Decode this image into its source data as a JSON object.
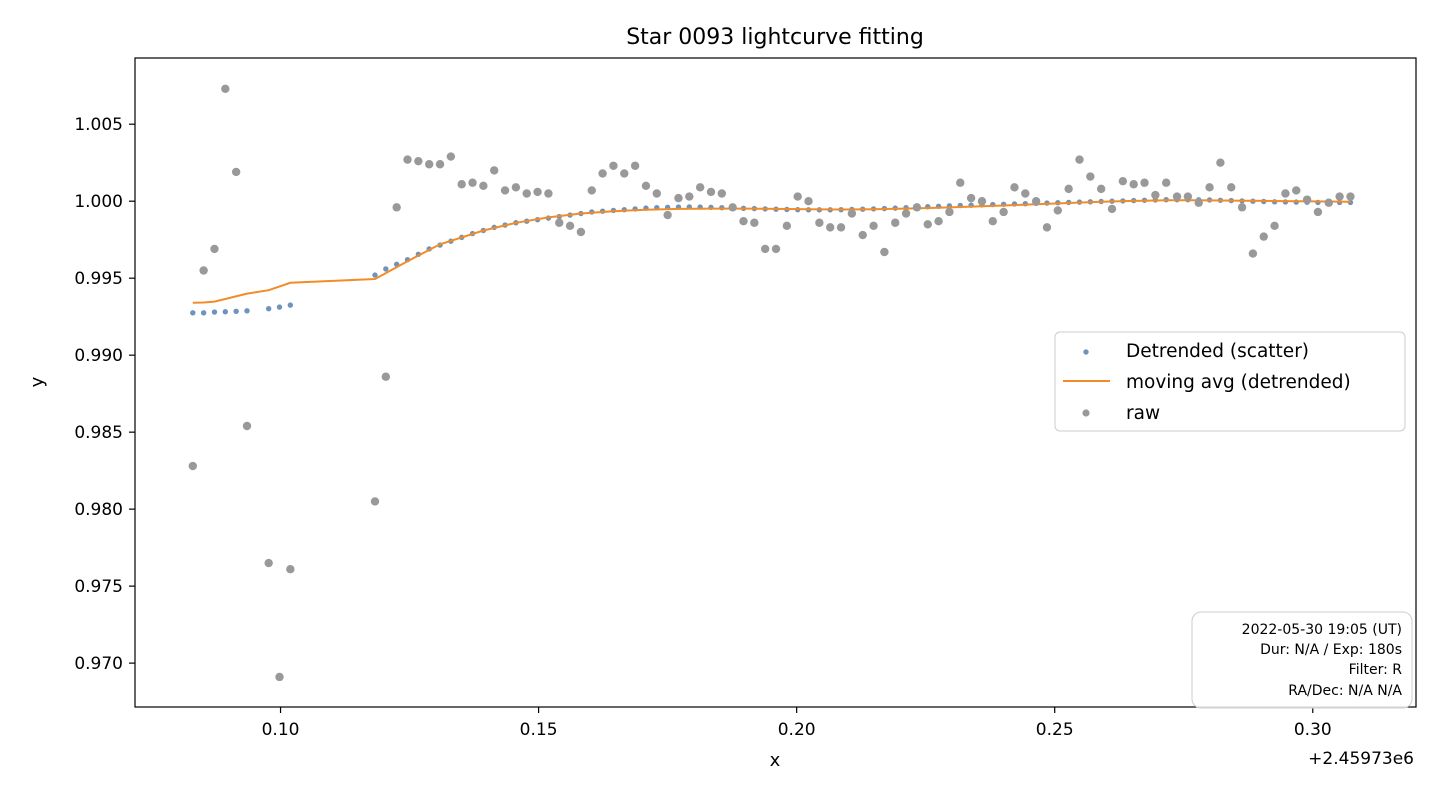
{
  "chart_data": {
    "type": "scatter",
    "title": "Star 0093 lightcurve fitting",
    "xlabel": "x",
    "ylabel": "y",
    "x_offset_label": "+2.45973e6",
    "xlim": [
      0.0718,
      0.32
    ],
    "ylim": [
      0.96715,
      1.0093
    ],
    "xticks": [
      0.1,
      0.15,
      0.2,
      0.25,
      0.3
    ],
    "xtick_labels": [
      "0.10",
      "0.15",
      "0.20",
      "0.25",
      "0.30"
    ],
    "yticks": [
      0.97,
      0.975,
      0.98,
      0.985,
      0.99,
      0.995,
      1.0,
      1.005
    ],
    "ytick_labels": [
      "0.970",
      "0.975",
      "0.980",
      "0.985",
      "0.990",
      "0.995",
      "1.000",
      "1.005"
    ],
    "grid": false,
    "legend_position": "center-right",
    "legend": [
      "Detrended (scatter)",
      "moving avg (detrended)",
      "raw"
    ],
    "info_box": {
      "position": "bottom-right",
      "lines": [
        "2022-05-30 19:05 (UT)",
        "Dur: N/A / Exp: 180s",
        "Filter: R",
        "RA/Dec: N/A N/A"
      ]
    },
    "colors": {
      "detrended": "#6f93bd",
      "moving_avg": "#f28c28",
      "raw": "#999999"
    },
    "series": [
      {
        "name": "Detrended (scatter)",
        "style": "scatter",
        "x": [
          0.083,
          0.0851,
          0.0872,
          0.0893,
          0.0914,
          0.0935,
          0.0977,
          0.0998,
          0.1019,
          0.1183,
          0.1204,
          0.1225,
          0.1246,
          0.1267,
          0.1288,
          0.1309,
          0.133,
          0.1351,
          0.1372,
          0.1393,
          0.1414,
          0.1435,
          0.1456,
          0.1477,
          0.1498,
          0.1519,
          0.154,
          0.1561,
          0.1582,
          0.1603,
          0.1624,
          0.1645,
          0.1666,
          0.1687,
          0.1708,
          0.1729,
          0.175,
          0.1771,
          0.1792,
          0.1813,
          0.1834,
          0.1855,
          0.1876,
          0.1897,
          0.1918,
          0.1939,
          0.196,
          0.1981,
          0.2002,
          0.2023,
          0.2044,
          0.2065,
          0.2086,
          0.2107,
          0.2128,
          0.2149,
          0.217,
          0.2191,
          0.2212,
          0.2233,
          0.2254,
          0.2275,
          0.2296,
          0.2317,
          0.2338,
          0.2359,
          0.238,
          0.2401,
          0.2422,
          0.2443,
          0.2464,
          0.2485,
          0.2506,
          0.2527,
          0.2548,
          0.2569,
          0.259,
          0.2611,
          0.2632,
          0.2653,
          0.2674,
          0.2695,
          0.2716,
          0.2737,
          0.2758,
          0.2779,
          0.28,
          0.2821,
          0.2842,
          0.2863,
          0.2884,
          0.2905,
          0.2926,
          0.2947,
          0.2968,
          0.2989,
          0.301,
          0.3031,
          0.3052,
          0.3073
        ],
        "y": [
          0.99275,
          0.99275,
          0.9928,
          0.99282,
          0.99285,
          0.99288,
          0.99302,
          0.99312,
          0.99325,
          0.9952,
          0.9956,
          0.9959,
          0.9962,
          0.99655,
          0.9969,
          0.99715,
          0.9974,
          0.99765,
          0.9979,
          0.9981,
          0.9983,
          0.99845,
          0.9986,
          0.9987,
          0.9988,
          0.9989,
          0.999,
          0.9991,
          0.9992,
          0.9993,
          0.99935,
          0.9994,
          0.99945,
          0.9995,
          0.99955,
          0.99958,
          0.9996,
          0.99962,
          0.99963,
          0.99962,
          0.9996,
          0.99958,
          0.99956,
          0.99954,
          0.99952,
          0.9995,
          0.99948,
          0.99946,
          0.99945,
          0.99944,
          0.99944,
          0.99944,
          0.99945,
          0.99946,
          0.99948,
          0.9995,
          0.99952,
          0.99955,
          0.99958,
          0.99961,
          0.99964,
          0.99967,
          0.9997,
          0.99972,
          0.99974,
          0.99976,
          0.99978,
          0.9998,
          0.99982,
          0.99984,
          0.99986,
          0.99988,
          0.9999,
          0.99992,
          0.99994,
          0.99996,
          0.99998,
          1.0,
          1.00002,
          1.00004,
          1.00006,
          1.00008,
          1.0001,
          1.0001,
          1.0001,
          1.00009,
          1.00008,
          1.00006,
          1.00004,
          1.00002,
          1.0,
          0.99998,
          0.99996,
          0.99995,
          0.99994,
          0.99993,
          0.99992,
          0.99992,
          0.99992,
          0.99992
        ]
      },
      {
        "name": "moving avg (detrended)",
        "style": "line",
        "x": [
          0.083,
          0.0851,
          0.0872,
          0.0893,
          0.0935,
          0.0977,
          0.1019,
          0.1183,
          0.1246,
          0.1309,
          0.1393,
          0.1456,
          0.1519,
          0.1582,
          0.1645,
          0.1708,
          0.1771,
          0.1834,
          0.1897,
          0.196,
          0.2023,
          0.2086,
          0.2149,
          0.2212,
          0.2275,
          0.2338,
          0.2401,
          0.2464,
          0.2527,
          0.259,
          0.2653,
          0.2716,
          0.2779,
          0.2842,
          0.2905,
          0.2968,
          0.3031,
          0.3073
        ],
        "y": [
          0.9934,
          0.99342,
          0.99348,
          0.99365,
          0.994,
          0.99422,
          0.9947,
          0.99495,
          0.9961,
          0.9972,
          0.9981,
          0.9986,
          0.99895,
          0.9992,
          0.99935,
          0.99945,
          0.9995,
          0.99952,
          0.99952,
          0.9995,
          0.99948,
          0.99946,
          0.99948,
          0.99952,
          0.99958,
          0.99965,
          0.99972,
          0.9998,
          0.99988,
          0.99996,
          1.00002,
          1.00006,
          1.00006,
          1.00004,
          1.00002,
          1.0,
          0.99998,
          0.99996
        ]
      },
      {
        "name": "raw",
        "style": "scatter",
        "x": [
          0.083,
          0.0851,
          0.0872,
          0.0893,
          0.0914,
          0.0935,
          0.0977,
          0.0998,
          0.1019,
          0.1183,
          0.1204,
          0.1225,
          0.1246,
          0.1267,
          0.1288,
          0.1309,
          0.133,
          0.1351,
          0.1372,
          0.1393,
          0.1414,
          0.1435,
          0.1456,
          0.1477,
          0.1498,
          0.1519,
          0.154,
          0.1561,
          0.1582,
          0.1603,
          0.1624,
          0.1645,
          0.1666,
          0.1687,
          0.1708,
          0.1729,
          0.175,
          0.1771,
          0.1792,
          0.1813,
          0.1834,
          0.1855,
          0.1876,
          0.1897,
          0.1918,
          0.1939,
          0.196,
          0.1981,
          0.2002,
          0.2023,
          0.2044,
          0.2065,
          0.2086,
          0.2107,
          0.2128,
          0.2149,
          0.217,
          0.2191,
          0.2212,
          0.2233,
          0.2254,
          0.2275,
          0.2296,
          0.2317,
          0.2338,
          0.2359,
          0.238,
          0.2401,
          0.2422,
          0.2443,
          0.2464,
          0.2485,
          0.2506,
          0.2527,
          0.2548,
          0.2569,
          0.259,
          0.2611,
          0.2632,
          0.2653,
          0.2674,
          0.2695,
          0.2716,
          0.2737,
          0.2758,
          0.2779,
          0.28,
          0.2821,
          0.2842,
          0.2863,
          0.2884,
          0.2905,
          0.2926,
          0.2947,
          0.2968,
          0.2989,
          0.301,
          0.3031,
          0.3052,
          0.3073
        ],
        "y": [
          0.9828,
          0.9955,
          0.9969,
          1.0073,
          1.0019,
          0.9854,
          0.9765,
          0.9691,
          0.9761,
          0.9805,
          0.9886,
          0.9996,
          1.0027,
          1.0026,
          1.0024,
          1.0024,
          1.0029,
          1.0011,
          1.0012,
          1.001,
          1.002,
          1.0007,
          1.0009,
          1.0005,
          1.0006,
          1.0005,
          0.9986,
          0.9984,
          0.998,
          1.0007,
          1.0018,
          1.0023,
          1.0018,
          1.0023,
          1.001,
          1.0005,
          0.9991,
          1.0002,
          1.0003,
          1.0009,
          1.0006,
          1.0005,
          0.9996,
          0.9987,
          0.9986,
          0.9969,
          0.9969,
          0.9984,
          1.0003,
          1.0,
          0.9986,
          0.9983,
          0.9983,
          0.9992,
          0.9978,
          0.9984,
          0.9967,
          0.9986,
          0.9992,
          0.9996,
          0.9985,
          0.9987,
          0.9993,
          1.0012,
          1.0002,
          1.0,
          0.9987,
          0.9993,
          1.0009,
          1.0005,
          1.0,
          0.9983,
          0.9994,
          1.0008,
          1.0027,
          1.0016,
          1.0008,
          0.9995,
          1.0013,
          1.0011,
          1.0012,
          1.0004,
          1.0012,
          1.0003,
          1.0003,
          0.9999,
          1.0009,
          1.0025,
          1.0009,
          0.9996,
          0.9966,
          0.9977,
          0.9984,
          1.0005,
          1.0007,
          1.0001,
          0.9993,
          0.9999,
          1.0003,
          1.0003
        ]
      }
    ]
  }
}
